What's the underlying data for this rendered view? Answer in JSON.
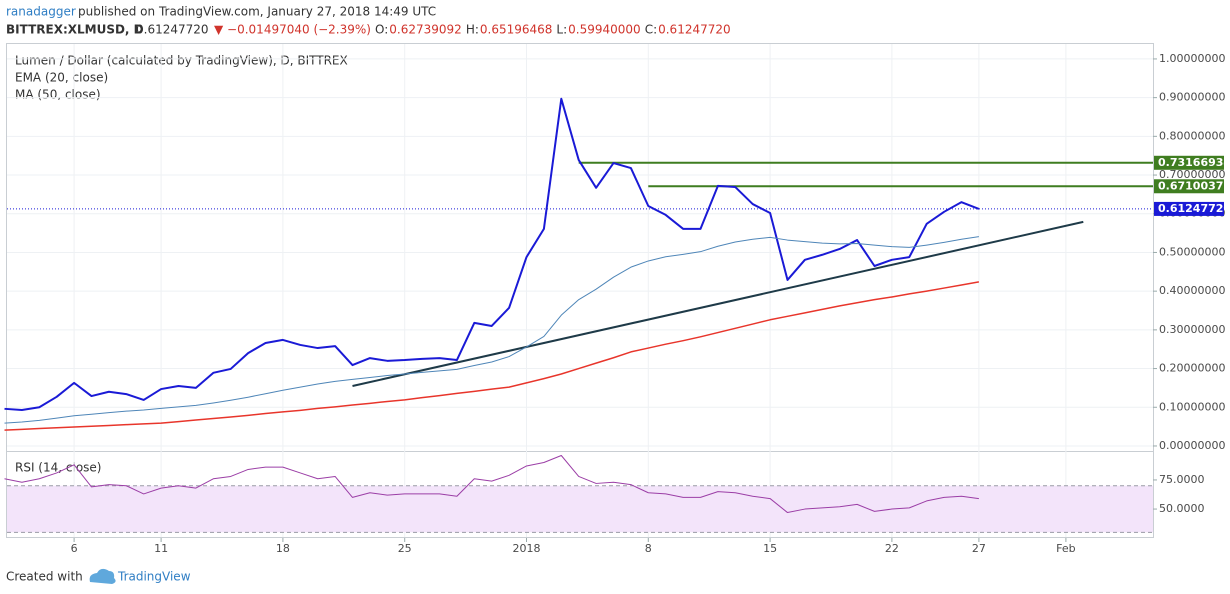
{
  "header": {
    "author": "ranadagger",
    "published": "published on TradingView.com, January 27, 2018 14:49 UTC",
    "symbol": "BITTREX:XLMUSD, D",
    "price": "0.61247720",
    "change": "▼ −0.01497040 (−2.39%)",
    "ohlc": [
      {
        "key": "O:",
        "value": "0.62739092"
      },
      {
        "key": "H:",
        "value": "0.65196468"
      },
      {
        "key": "L:",
        "value": "0.59940000"
      },
      {
        "key": "C:",
        "value": "0.61247720"
      }
    ]
  },
  "footer": {
    "created": "Created with",
    "brand": "TradingView"
  },
  "chart_data": [
    {
      "type": "line",
      "legend": [
        "Lumen / Dollar (calculated by TradingView), D, BITTREX",
        "EMA (20, close)",
        "MA (50, close)"
      ],
      "categories": [
        null,
        null,
        null,
        null,
        "6",
        null,
        null,
        null,
        null,
        "11",
        null,
        null,
        null,
        null,
        null,
        null,
        "18",
        null,
        null,
        null,
        null,
        null,
        null,
        "25",
        null,
        null,
        null,
        null,
        null,
        null,
        "2018",
        null,
        null,
        null,
        null,
        null,
        null,
        "8",
        null,
        null,
        null,
        null,
        null,
        null,
        "15",
        null,
        null,
        null,
        null,
        null,
        null,
        "22",
        null,
        null,
        null,
        null,
        "27",
        null,
        null,
        null,
        null,
        "Feb",
        null,
        null,
        null,
        null,
        null
      ],
      "series": [
        {
          "name": "Lumen / Dollar (calculated by TradingView), D, BITTREX",
          "color": "#1a1ad6",
          "width": 2,
          "values": [
            0.096,
            0.093,
            0.1,
            0.127,
            0.163,
            0.129,
            0.14,
            0.134,
            0.119,
            0.147,
            0.155,
            0.15,
            0.189,
            0.199,
            0.24,
            0.266,
            0.274,
            0.261,
            0.253,
            0.258,
            0.209,
            0.227,
            0.22,
            0.222,
            0.225,
            0.227,
            0.222,
            0.318,
            0.31,
            0.357,
            0.488,
            0.561,
            0.897,
            0.739,
            0.667,
            0.731,
            0.718,
            0.62,
            0.597,
            0.561,
            0.561,
            0.672,
            0.669,
            0.625,
            0.602,
            0.429,
            0.481,
            0.494,
            0.509,
            0.532,
            0.465,
            0.481,
            0.488,
            0.574,
            0.605,
            0.63,
            0.6124772,
            null,
            null,
            null,
            null,
            null,
            null,
            null,
            null,
            null,
            null
          ]
        },
        {
          "name": "EMA (20, close)",
          "color": "#4f86b8",
          "width": 1,
          "values": [
            0.059,
            0.062,
            0.066,
            0.072,
            0.078,
            0.082,
            0.086,
            0.09,
            0.093,
            0.097,
            0.101,
            0.105,
            0.111,
            0.118,
            0.126,
            0.135,
            0.144,
            0.152,
            0.16,
            0.167,
            0.172,
            0.177,
            0.182,
            0.186,
            0.19,
            0.194,
            0.198,
            0.208,
            0.217,
            0.231,
            0.256,
            0.283,
            0.338,
            0.378,
            0.405,
            0.436,
            0.462,
            0.478,
            0.489,
            0.495,
            0.502,
            0.516,
            0.527,
            0.534,
            0.539,
            0.532,
            0.528,
            0.524,
            0.522,
            0.523,
            0.519,
            0.515,
            0.513,
            0.519,
            0.526,
            0.534,
            0.541,
            null,
            null,
            null,
            null,
            null,
            null,
            null,
            null,
            null,
            null
          ]
        },
        {
          "name": "MA (50, close)",
          "color": "#e8352b",
          "width": 1.5,
          "values": [
            0.041,
            0.043,
            0.045,
            0.047,
            0.049,
            0.051,
            0.053,
            0.055,
            0.057,
            0.059,
            0.063,
            0.067,
            0.071,
            0.075,
            0.079,
            0.084,
            0.088,
            0.092,
            0.097,
            0.101,
            0.106,
            0.11,
            0.115,
            0.119,
            0.125,
            0.13,
            0.136,
            0.141,
            0.147,
            0.152,
            0.163,
            0.174,
            0.186,
            0.2,
            0.214,
            0.228,
            0.243,
            0.253,
            0.263,
            0.272,
            0.282,
            0.293,
            0.304,
            0.315,
            0.326,
            0.335,
            0.344,
            0.353,
            0.362,
            0.37,
            0.378,
            0.385,
            0.393,
            0.4,
            0.408,
            0.416,
            0.424,
            null,
            null,
            null,
            null,
            null,
            null,
            null,
            null,
            null,
            null
          ]
        }
      ],
      "ylim": [
        -0.013,
        1.036
      ],
      "yticks": [
        {
          "value": 0,
          "label": "0.00000000"
        },
        {
          "value": 0.1,
          "label": "0.10000000"
        },
        {
          "value": 0.2,
          "label": "0.20000000"
        },
        {
          "value": 0.3,
          "label": "0.30000000"
        },
        {
          "value": 0.4,
          "label": "0.40000000"
        },
        {
          "value": 0.5,
          "label": "0.50000000"
        },
        {
          "value": 0.6,
          "label": "0.60000000"
        },
        {
          "value": 0.7,
          "label": "0.70000000"
        },
        {
          "value": 0.8,
          "label": "0.80000000"
        },
        {
          "value": 0.9,
          "label": "0.90000000"
        },
        {
          "value": 1,
          "label": "1.00000000"
        }
      ],
      "grid": true,
      "levels": [
        {
          "value": 0.73166934,
          "label": "0.73166934",
          "from_index": 33,
          "color": "#3f7d20"
        },
        {
          "value": 0.67100378,
          "label": "0.67100378",
          "from_index": 37,
          "color": "#3f7d20"
        }
      ],
      "last_price": {
        "value": 0.6124772,
        "label": "0.61247720",
        "color": "#1a1ad6"
      },
      "trendline": {
        "from_index": 20,
        "from_value": 0.155,
        "to_index": 62,
        "to_value": 0.579,
        "color": "#1e3a48"
      }
    },
    {
      "type": "line",
      "legend": [
        "RSI (14, close)"
      ],
      "series": [
        {
          "name": "RSI (14, close)",
          "color": "#9b3ea6",
          "width": 1,
          "values": [
            76,
            73,
            76,
            81,
            88,
            69,
            71,
            70,
            63,
            68,
            70,
            68,
            76,
            78,
            84,
            86,
            86,
            81,
            76,
            78,
            60,
            64,
            62,
            63,
            63,
            63,
            61,
            76,
            74,
            79,
            87,
            90,
            96,
            78,
            72,
            73,
            71,
            64,
            63,
            60,
            60,
            65,
            64,
            61,
            59,
            47,
            50,
            51,
            52,
            54,
            48,
            50,
            51,
            57,
            60,
            61,
            59,
            null,
            null,
            null,
            null,
            null,
            null,
            null,
            null,
            null,
            null
          ]
        }
      ],
      "ylim": [
        26,
        99
      ],
      "yticks": [
        {
          "value": 75,
          "label": "75.0000"
        },
        {
          "value": 50,
          "label": "50.0000"
        }
      ],
      "bands": [
        30,
        70
      ],
      "band_color": "#f3e4fa"
    }
  ]
}
